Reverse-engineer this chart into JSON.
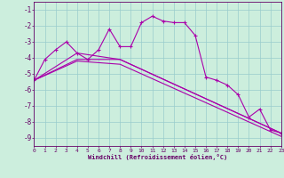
{
  "xlabel": "Windchill (Refroidissement éolien,°C)",
  "bg_color": "#cceedd",
  "line_color": "#aa00aa",
  "series1": {
    "x": [
      0,
      1,
      2,
      3,
      4,
      5,
      6,
      7,
      8,
      9,
      10,
      11,
      12,
      13,
      14,
      15,
      16,
      17,
      18,
      19,
      20,
      21,
      22,
      23
    ],
    "y": [
      -5.4,
      -4.1,
      -3.5,
      -3.0,
      -3.7,
      -4.1,
      -3.5,
      -2.2,
      -3.3,
      -3.3,
      -1.8,
      -1.4,
      -1.7,
      -1.8,
      -1.8,
      -2.6,
      -5.2,
      -5.4,
      -5.7,
      -6.3,
      -7.7,
      -7.2,
      -8.5,
      -8.7
    ]
  },
  "series2": {
    "x": [
      0,
      4,
      8,
      23
    ],
    "y": [
      -5.4,
      -3.7,
      -4.1,
      -8.7
    ]
  },
  "series3": {
    "x": [
      0,
      4,
      8,
      23
    ],
    "y": [
      -5.4,
      -4.1,
      -4.1,
      -8.7
    ]
  },
  "series4": {
    "x": [
      0,
      4,
      8,
      23
    ],
    "y": [
      -5.4,
      -4.2,
      -4.4,
      -8.9
    ]
  },
  "xlim": [
    0,
    23
  ],
  "ylim": [
    -9.5,
    -0.5
  ],
  "yticks": [
    -9,
    -8,
    -7,
    -6,
    -5,
    -4,
    -3,
    -2,
    -1
  ],
  "xticks": [
    0,
    1,
    2,
    3,
    4,
    5,
    6,
    7,
    8,
    9,
    10,
    11,
    12,
    13,
    14,
    15,
    16,
    17,
    18,
    19,
    20,
    21,
    22,
    23
  ]
}
